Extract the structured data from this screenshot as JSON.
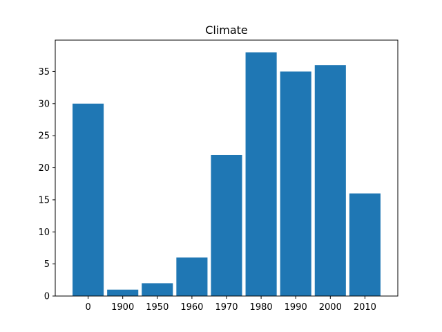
{
  "chart_data": {
    "type": "bar",
    "title": "Climate",
    "xlabel": "",
    "ylabel": "",
    "categories": [
      "0",
      "1900",
      "1950",
      "1960",
      "1970",
      "1980",
      "1990",
      "2000",
      "2010"
    ],
    "values": [
      30,
      1,
      2,
      6,
      22,
      38,
      35,
      36,
      16
    ],
    "ylim": [
      0,
      39.9
    ],
    "yticks": [
      0,
      5,
      10,
      15,
      20,
      25,
      30,
      35
    ],
    "bar_color": "#1f77b4",
    "grid": false,
    "legend": "none"
  }
}
